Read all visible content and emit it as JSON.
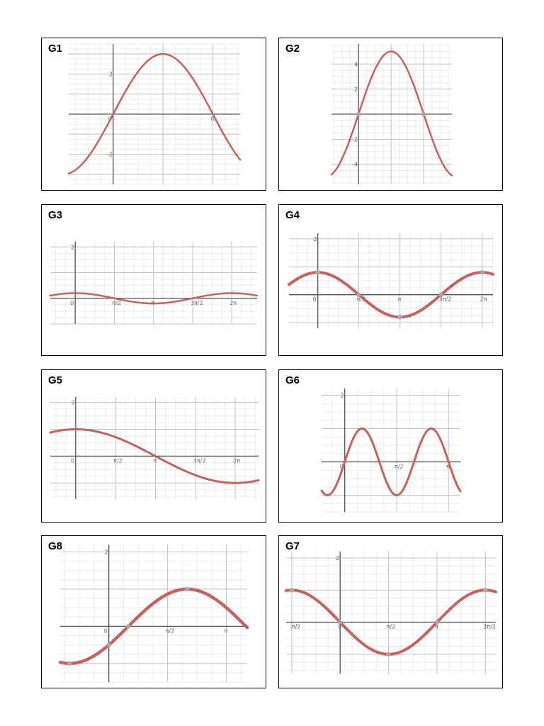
{
  "colors": {
    "curve": "#c8615b",
    "marker": "#a8a8a8",
    "axis": "#555555",
    "grid_major": "#c4c4c4",
    "grid_minor": "#ebebeb"
  },
  "chart_data": [
    {
      "label": "G1",
      "type": "line",
      "function": "y = 3 sin(x)",
      "amplitude": 3,
      "x_ticks": [
        {
          "value": 3.1416,
          "label": "π"
        }
      ],
      "y_ticks": [
        {
          "value": 2,
          "label": "2"
        },
        {
          "value": -2,
          "label": "-2"
        }
      ],
      "origin_label": "0",
      "markers": [],
      "xlim": [
        -1.4,
        4.0
      ],
      "ylim": [
        -3.5,
        3.5
      ]
    },
    {
      "label": "G2",
      "type": "line",
      "function": "y = 5 sin(x)",
      "amplitude": 5,
      "x_ticks": [],
      "y_ticks": [
        {
          "value": 4,
          "label": "4"
        },
        {
          "value": 2,
          "label": "2"
        },
        {
          "value": -2,
          "label": "-2"
        },
        {
          "value": -4,
          "label": "-4"
        }
      ],
      "origin_label": "",
      "markers": [
        [
          0,
          0
        ],
        [
          3.1416,
          0
        ]
      ],
      "xlim": [
        -1.3,
        4.5
      ],
      "ylim": [
        -5.6,
        5.6
      ]
    },
    {
      "label": "G3",
      "type": "line",
      "function": "y = 0.2 cos(x)",
      "x_ticks": [
        {
          "value": 1.5708,
          "label": "π/2"
        },
        {
          "value": 3.1416,
          "label": "π"
        },
        {
          "value": 4.7124,
          "label": "3π/2"
        },
        {
          "value": 6.2832,
          "label": "2π"
        }
      ],
      "y_ticks": [
        {
          "value": 2,
          "label": "2"
        }
      ],
      "origin_label": "0",
      "markers": [],
      "xlim": [
        -1.0,
        7.3
      ],
      "ylim": [
        -1.0,
        2.2
      ]
    },
    {
      "label": "G4",
      "type": "line",
      "function": "y = 0.8 cos(x)",
      "x_ticks": [
        {
          "value": 1.5708,
          "label": "π/2"
        },
        {
          "value": 3.1416,
          "label": "π"
        },
        {
          "value": 4.7124,
          "label": "3π/2"
        },
        {
          "value": 6.2832,
          "label": "2π"
        }
      ],
      "y_ticks": [
        {
          "value": 2,
          "label": "2"
        }
      ],
      "origin_label": "0",
      "markers": [
        [
          0,
          0.8
        ],
        [
          1.5708,
          0
        ],
        [
          3.1416,
          -0.8
        ],
        [
          4.7124,
          0
        ],
        [
          6.2832,
          0.8
        ]
      ],
      "xlim": [
        -1.1,
        6.7
      ],
      "ylim": [
        -1.2,
        2.2
      ]
    },
    {
      "label": "G5",
      "type": "line",
      "function": "y = cos(x/2)",
      "x_ticks": [
        {
          "value": 1.5708,
          "label": "π/2"
        },
        {
          "value": 3.1416,
          "label": "π"
        },
        {
          "value": 4.7124,
          "label": "3π/2"
        },
        {
          "value": 6.2832,
          "label": "2π"
        }
      ],
      "y_ticks": [
        {
          "value": 2,
          "label": "2"
        }
      ],
      "origin_label": "0",
      "markers": [],
      "xlim": [
        -1.0,
        7.2
      ],
      "ylim": [
        -1.6,
        2.2
      ]
    },
    {
      "label": "G6",
      "type": "line",
      "function": "y = sin(3x)",
      "x_ticks": [
        {
          "value": 1.5708,
          "label": "π/2"
        },
        {
          "value": 3.1416,
          "label": "π"
        }
      ],
      "y_ticks": [
        {
          "value": 2,
          "label": "2"
        }
      ],
      "origin_label": "0",
      "markers": [],
      "xlim": [
        -0.7,
        3.5
      ],
      "ylim": [
        -1.5,
        2.2
      ]
    },
    {
      "label": "G8",
      "type": "line",
      "function": "y = sin(x - π/6)",
      "x_ticks": [
        {
          "value": 1.5708,
          "label": "π/2"
        },
        {
          "value": 3.1416,
          "label": "π"
        }
      ],
      "y_ticks": [
        {
          "value": 2,
          "label": "2"
        }
      ],
      "origin_label": "0",
      "markers": [
        [
          -1.0472,
          -1
        ],
        [
          0,
          -0.5
        ],
        [
          0.5236,
          0
        ],
        [
          2.0944,
          1
        ]
      ],
      "xlim": [
        -1.3,
        3.7
      ],
      "ylim": [
        -1.5,
        2.2
      ]
    },
    {
      "label": "G7",
      "type": "line",
      "function": "y = cos(x + π/2)",
      "x_ticks": [
        {
          "value": -1.5708,
          "label": "-π/2"
        },
        {
          "value": 0,
          "label": "0"
        },
        {
          "value": 1.5708,
          "label": "π/2"
        },
        {
          "value": 3.1416,
          "label": "π"
        },
        {
          "value": 4.7124,
          "label": "3π/2"
        }
      ],
      "y_ticks": [
        {
          "value": 2,
          "label": "2"
        }
      ],
      "origin_label": "",
      "markers": [
        [
          -1.5708,
          1
        ],
        [
          0,
          0
        ],
        [
          1.5708,
          -1
        ],
        [
          3.1416,
          0
        ],
        [
          4.7124,
          1
        ]
      ],
      "xlim": [
        -1.75,
        5.05
      ],
      "ylim": [
        -1.6,
        2.2
      ]
    }
  ]
}
